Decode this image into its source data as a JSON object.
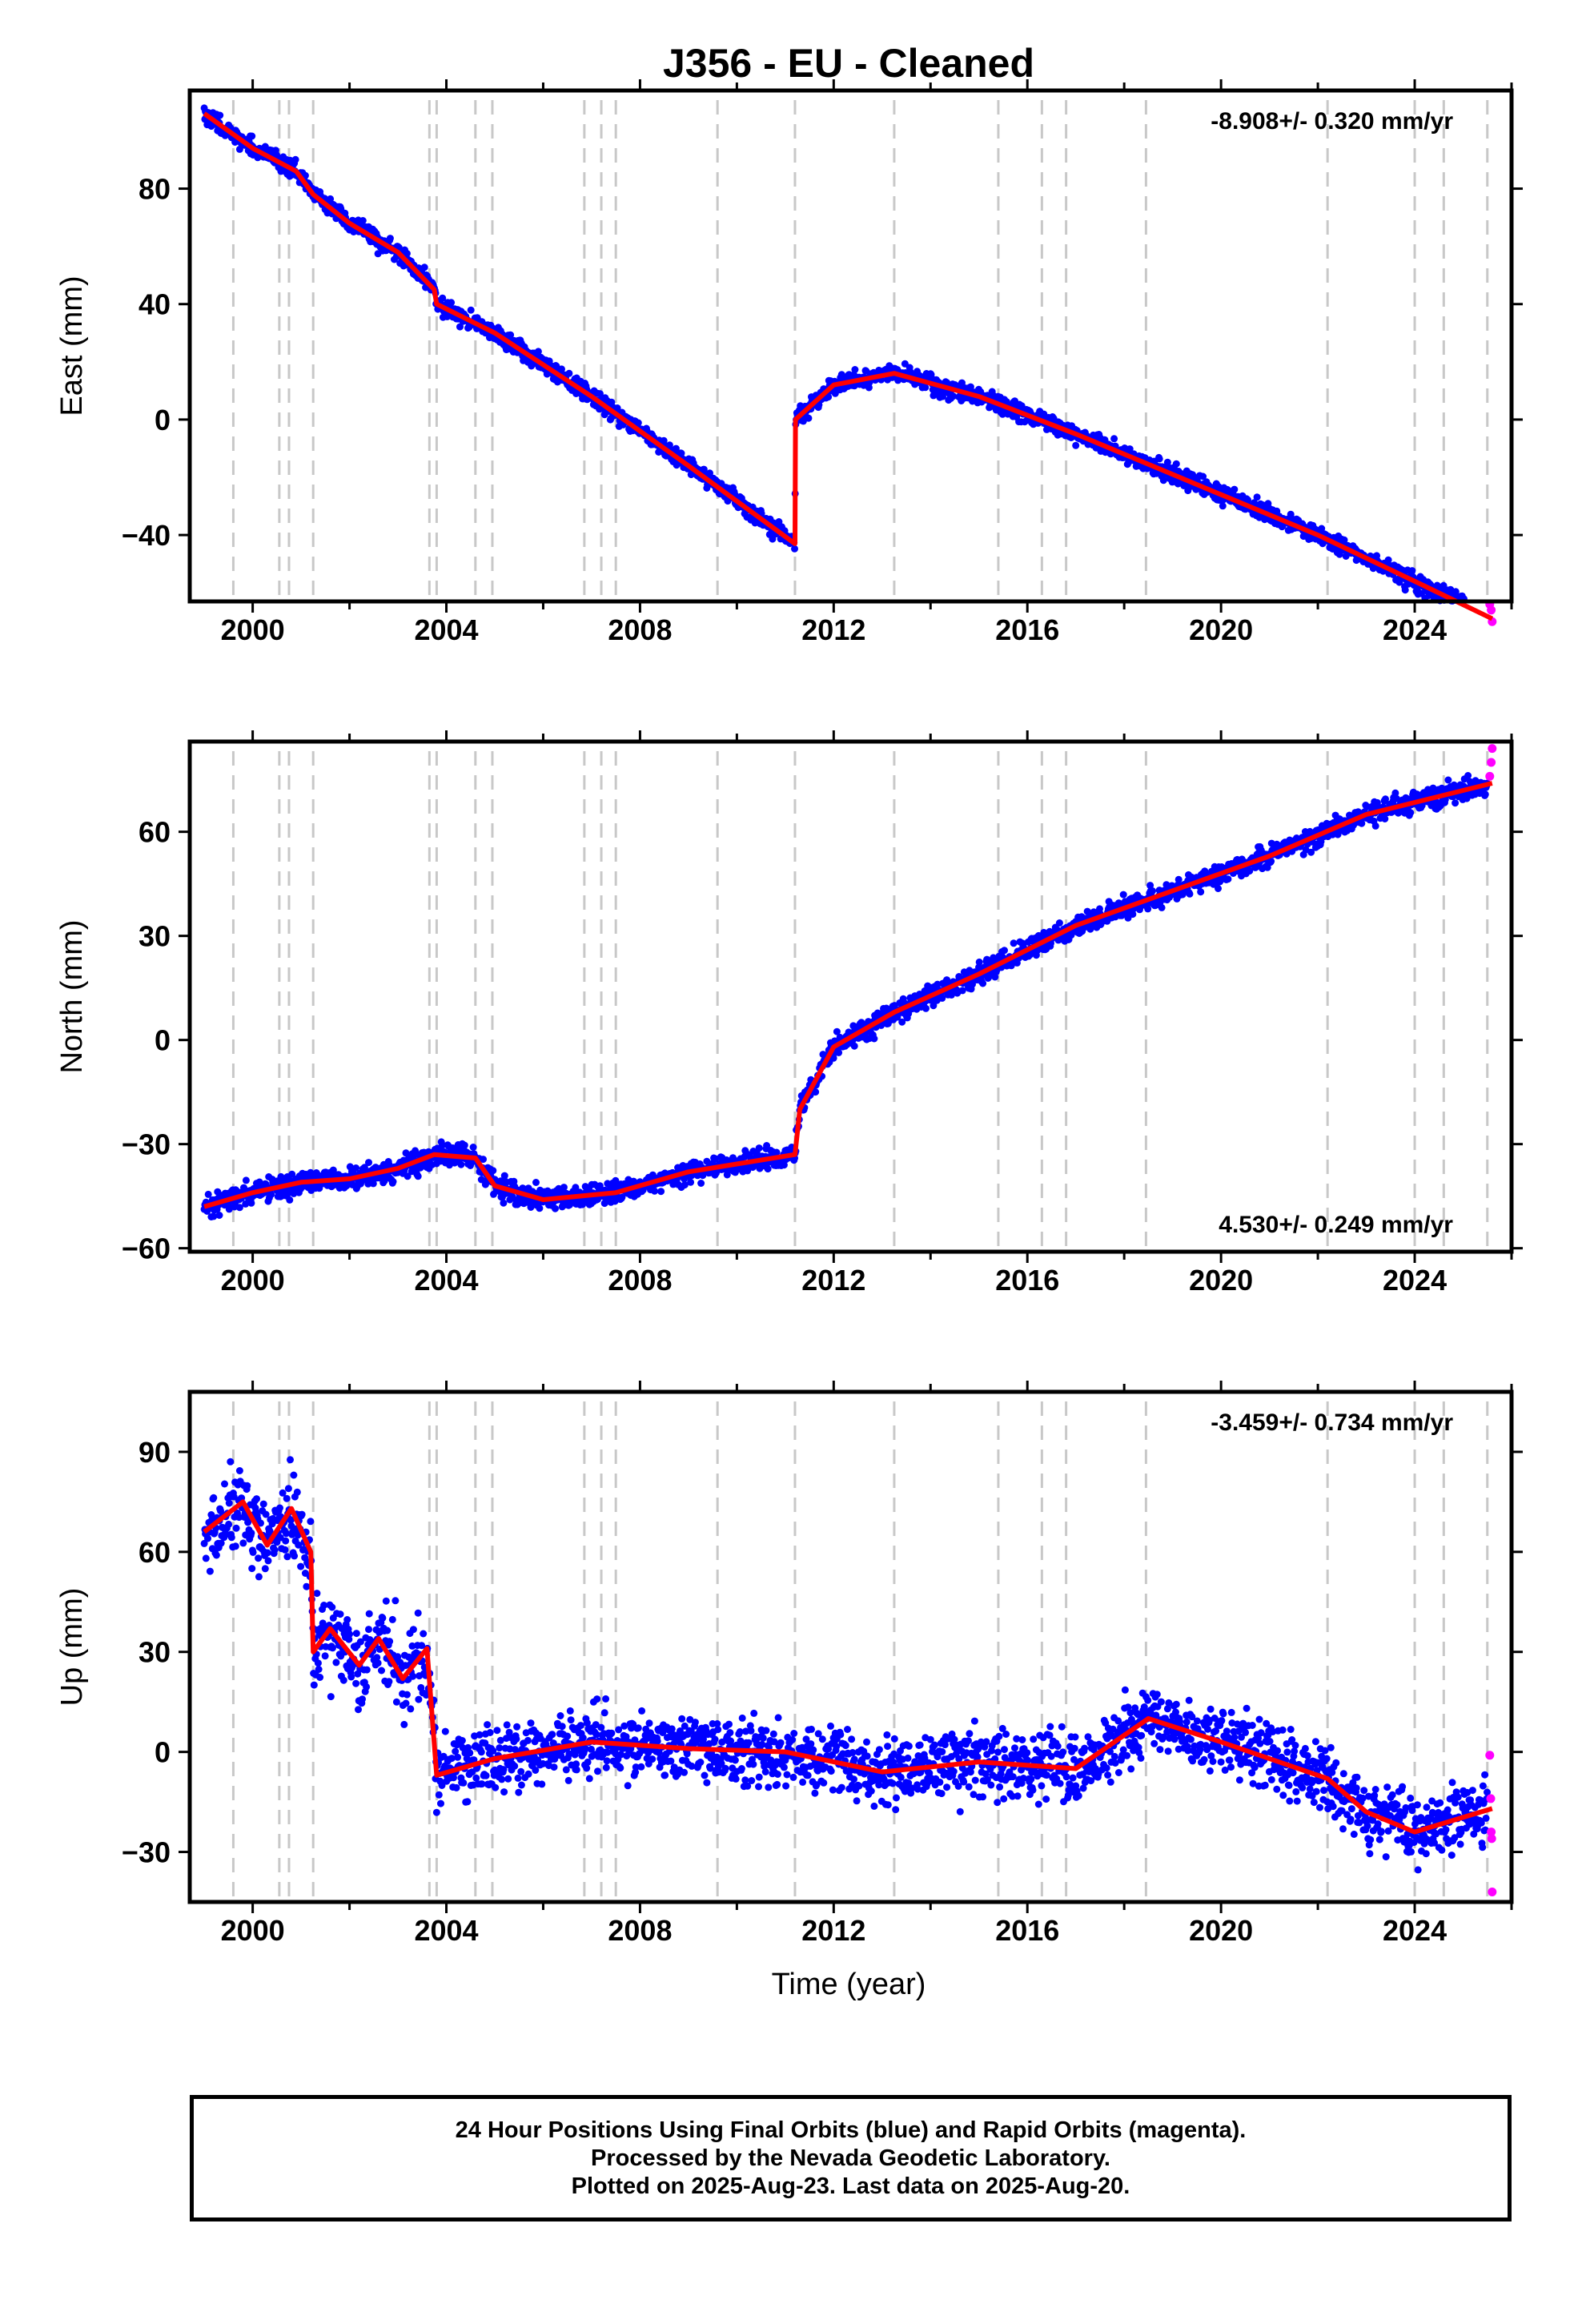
{
  "title": "J356  - EU - Cleaned",
  "xlabel": "Time (year)",
  "footer": {
    "line1": "24 Hour Positions Using Final Orbits (blue) and Rapid Orbits (magenta).",
    "line2": "Processed by the Nevada Geodetic Laboratory.",
    "line3": "Plotted on 2025-Aug-23. Last data on 2025-Aug-20."
  },
  "colors": {
    "final": "#0000ff",
    "rapid": "#ff00ff",
    "model": "#ff0000",
    "events": "#c8c8c8"
  },
  "chart_data": [
    {
      "type": "scatter",
      "component": "east",
      "ylabel": "East (mm)",
      "rate": "-8.908+/- 0.320 mm/yr",
      "rate_position": "top-right",
      "xlim": [
        1998.7,
        2026.0
      ],
      "ylim": [
        -63,
        114
      ],
      "xticks": [
        2000,
        2004,
        2008,
        2012,
        2016,
        2020,
        2024
      ],
      "yticks": [
        -40,
        0,
        40,
        80
      ],
      "ytick_labels": [
        "−40",
        "0",
        "40",
        "80"
      ],
      "event_years": [
        1999.6,
        2000.55,
        2000.75,
        2001.25,
        2003.65,
        2003.8,
        2004.6,
        2004.95,
        2006.85,
        2007.2,
        2007.5,
        2009.6,
        2011.2,
        2013.25,
        2015.4,
        2016.3,
        2016.8,
        2018.45,
        2022.2,
        2024.0,
        2024.6,
        2025.5
      ],
      "model_series": [
        {
          "x": 1999.0,
          "y": 106
        },
        {
          "x": 2000.0,
          "y": 94
        },
        {
          "x": 2000.9,
          "y": 86
        },
        {
          "x": 2001.25,
          "y": 78
        },
        {
          "x": 2002.0,
          "y": 68
        },
        {
          "x": 2003.0,
          "y": 58
        },
        {
          "x": 2003.75,
          "y": 45
        },
        {
          "x": 2003.8,
          "y": 40
        },
        {
          "x": 2005.0,
          "y": 30
        },
        {
          "x": 2007.0,
          "y": 8
        },
        {
          "x": 2009.0,
          "y": -16
        },
        {
          "x": 2011.2,
          "y": -43
        },
        {
          "x": 2011.21,
          "y": 0
        },
        {
          "x": 2012.0,
          "y": 12
        },
        {
          "x": 2013.25,
          "y": 16
        },
        {
          "x": 2015.0,
          "y": 8
        },
        {
          "x": 2017.0,
          "y": -5
        },
        {
          "x": 2019.0,
          "y": -19
        },
        {
          "x": 2022.0,
          "y": -40
        },
        {
          "x": 2024.0,
          "y": -56
        },
        {
          "x": 2025.6,
          "y": -69
        }
      ],
      "rapid_series": [
        {
          "x": 2025.55,
          "y": -64
        },
        {
          "x": 2025.58,
          "y": -66
        },
        {
          "x": 2025.6,
          "y": -70
        }
      ]
    },
    {
      "type": "scatter",
      "component": "north",
      "ylabel": "North (mm)",
      "rate": "4.530+/- 0.249 mm/yr",
      "rate_position": "bottom-right",
      "xlim": [
        1998.7,
        2026.0
      ],
      "ylim": [
        -61,
        86
      ],
      "xticks": [
        2000,
        2004,
        2008,
        2012,
        2016,
        2020,
        2024
      ],
      "yticks": [
        -60,
        -30,
        0,
        30,
        60
      ],
      "ytick_labels": [
        "−60",
        "−30",
        "0",
        "30",
        "60"
      ],
      "event_years": [
        1999.6,
        2000.55,
        2000.75,
        2001.25,
        2003.65,
        2003.8,
        2004.6,
        2004.95,
        2006.85,
        2007.2,
        2007.5,
        2009.6,
        2011.2,
        2013.25,
        2015.4,
        2016.3,
        2016.8,
        2018.45,
        2022.2,
        2024.0,
        2024.6,
        2025.5
      ],
      "model_series": [
        {
          "x": 1999.0,
          "y": -48
        },
        {
          "x": 2000.0,
          "y": -44
        },
        {
          "x": 2001.0,
          "y": -41
        },
        {
          "x": 2002.0,
          "y": -40
        },
        {
          "x": 2003.0,
          "y": -37
        },
        {
          "x": 2003.75,
          "y": -33
        },
        {
          "x": 2004.6,
          "y": -34
        },
        {
          "x": 2005.0,
          "y": -42
        },
        {
          "x": 2006.0,
          "y": -46
        },
        {
          "x": 2007.5,
          "y": -44
        },
        {
          "x": 2009.0,
          "y": -38
        },
        {
          "x": 2011.2,
          "y": -33
        },
        {
          "x": 2011.3,
          "y": -20
        },
        {
          "x": 2012.0,
          "y": -2
        },
        {
          "x": 2013.25,
          "y": 8
        },
        {
          "x": 2015.0,
          "y": 19
        },
        {
          "x": 2017.0,
          "y": 33
        },
        {
          "x": 2019.0,
          "y": 43
        },
        {
          "x": 2021.0,
          "y": 53
        },
        {
          "x": 2023.0,
          "y": 65
        },
        {
          "x": 2025.6,
          "y": 74
        }
      ],
      "rapid_series": [
        {
          "x": 2025.55,
          "y": 76
        },
        {
          "x": 2025.58,
          "y": 80
        },
        {
          "x": 2025.6,
          "y": 84
        }
      ]
    },
    {
      "type": "scatter",
      "component": "up",
      "ylabel": "Up (mm)",
      "rate": "-3.459+/- 0.734 mm/yr",
      "rate_position": "top-right",
      "xlim": [
        1998.7,
        2026.0
      ],
      "ylim": [
        -45,
        108
      ],
      "xticks": [
        2000,
        2004,
        2008,
        2012,
        2016,
        2020,
        2024
      ],
      "yticks": [
        -30,
        0,
        30,
        60,
        90
      ],
      "ytick_labels": [
        "−30",
        "0",
        "30",
        "60",
        "90"
      ],
      "event_years": [
        1999.6,
        2000.55,
        2000.75,
        2001.25,
        2003.65,
        2003.8,
        2004.6,
        2004.95,
        2006.85,
        2007.2,
        2007.5,
        2009.6,
        2011.2,
        2013.25,
        2015.4,
        2016.3,
        2016.8,
        2018.45,
        2022.2,
        2024.0,
        2024.6,
        2025.5
      ],
      "model_series": [
        {
          "x": 1999.0,
          "y": 66
        },
        {
          "x": 1999.8,
          "y": 75
        },
        {
          "x": 2000.3,
          "y": 62
        },
        {
          "x": 2000.8,
          "y": 73
        },
        {
          "x": 2001.2,
          "y": 60
        },
        {
          "x": 2001.25,
          "y": 30
        },
        {
          "x": 2001.6,
          "y": 37
        },
        {
          "x": 2002.2,
          "y": 26
        },
        {
          "x": 2002.6,
          "y": 34
        },
        {
          "x": 2003.1,
          "y": 22
        },
        {
          "x": 2003.6,
          "y": 31
        },
        {
          "x": 2003.8,
          "y": -7
        },
        {
          "x": 2005.0,
          "y": -2
        },
        {
          "x": 2007.0,
          "y": 3
        },
        {
          "x": 2009.0,
          "y": 1
        },
        {
          "x": 2011.0,
          "y": 0
        },
        {
          "x": 2013.0,
          "y": -6
        },
        {
          "x": 2015.0,
          "y": -3
        },
        {
          "x": 2017.0,
          "y": -5
        },
        {
          "x": 2018.5,
          "y": 10
        },
        {
          "x": 2020.0,
          "y": 3
        },
        {
          "x": 2022.2,
          "y": -8
        },
        {
          "x": 2023.0,
          "y": -18
        },
        {
          "x": 2024.0,
          "y": -24
        },
        {
          "x": 2025.6,
          "y": -17
        }
      ],
      "rapid_series": [
        {
          "x": 2025.55,
          "y": -1
        },
        {
          "x": 2025.57,
          "y": -14
        },
        {
          "x": 2025.58,
          "y": -24
        },
        {
          "x": 2025.59,
          "y": -26
        },
        {
          "x": 2025.6,
          "y": -42
        }
      ]
    }
  ]
}
